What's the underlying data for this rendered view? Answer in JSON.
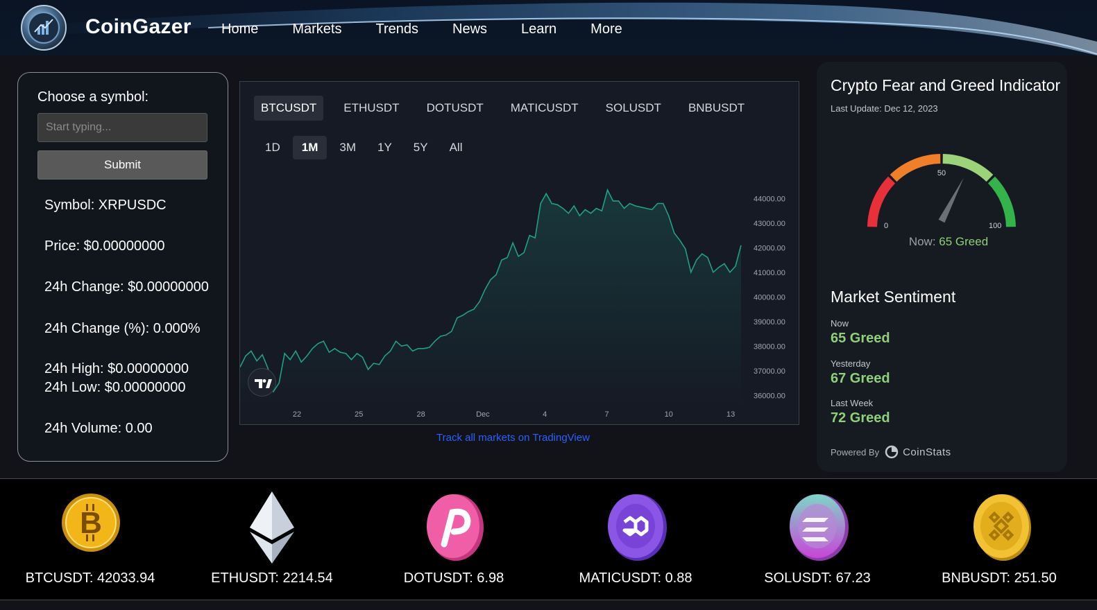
{
  "header": {
    "brand": "CoinGazer",
    "nav": [
      "Home",
      "Markets",
      "Trends",
      "News",
      "Learn",
      "More"
    ]
  },
  "left_panel": {
    "choose_label": "Choose a symbol:",
    "input_placeholder": "Start typing...",
    "submit_label": "Submit",
    "symbol": "Symbol: XRPUSDC",
    "price": "Price: $0.00000000",
    "change": "24h Change: $0.00000000",
    "change_pct": "24h Change (%): 0.000%",
    "high": "24h High: $0.00000000",
    "low": "24h Low: $0.00000000",
    "volume": "24h Volume: 0.00"
  },
  "chart_panel": {
    "symbol_tabs": [
      "BTCUSDT",
      "ETHUSDT",
      "DOTUSDT",
      "MATICUSDT",
      "SOLUSDT",
      "BNBUSDT"
    ],
    "active_symbol": "BTCUSDT",
    "range_tabs": [
      "1D",
      "1M",
      "3M",
      "1Y",
      "5Y",
      "All"
    ],
    "active_range": "1M",
    "track_link": "Track all markets on TradingView",
    "line_color": "#1fa187"
  },
  "chart_data": {
    "type": "area",
    "series": [
      {
        "values": [
          37150,
          37600,
          37800,
          37400,
          37650,
          37100,
          36150,
          36500,
          37700,
          37450,
          37800,
          37350,
          37600,
          37900,
          38100,
          38200,
          37750,
          37900,
          37750,
          37700,
          37450,
          37700,
          37550,
          37050,
          37300,
          37250,
          37600,
          37800,
          38200,
          38000,
          38050,
          37800,
          37900,
          37900,
          37950,
          38200,
          38400,
          38450,
          38600,
          39150,
          39250,
          39400,
          39500,
          39800,
          40300,
          40700,
          40900,
          41500,
          41600,
          42200,
          41650,
          41800,
          42500,
          42400,
          43800,
          44200,
          43800,
          43750,
          43600,
          43400,
          43700,
          43300,
          43550,
          43400,
          43600,
          43500,
          44350,
          43900,
          43900,
          43600,
          43800,
          43700,
          43650,
          43600,
          43550,
          43800,
          43800,
          43300,
          42600,
          42300,
          41950,
          41000,
          41500,
          41750,
          41600,
          41000,
          41200,
          41350,
          41000,
          41250,
          42100
        ]
      }
    ],
    "x_ticks": [
      "22",
      "25",
      "28",
      "Dec",
      "4",
      "7",
      "10",
      "13"
    ],
    "y_ticks": [
      "44000.00",
      "43000.00",
      "42000.00",
      "41000.00",
      "40000.00",
      "39000.00",
      "38000.00",
      "37000.00",
      "36000.00"
    ],
    "ylim": [
      35500,
      44800
    ],
    "grid": false,
    "legend": "none"
  },
  "fear_greed": {
    "title": "Crypto Fear and Greed Indicator",
    "last_update": "Last Update: Dec 12, 2023",
    "gauge_min": "0",
    "gauge_mid": "50",
    "gauge_max": "100",
    "needle_value": 65,
    "now_prefix": "Now: ",
    "now_value": "65 Greed",
    "colors": [
      "#e8303a",
      "#f07f2a",
      "#9bd27a",
      "#34b34a"
    ]
  },
  "market_sentiment": {
    "title": "Market Sentiment",
    "items": [
      {
        "label": "Now",
        "value": "65 Greed"
      },
      {
        "label": "Yesterday",
        "value": "67 Greed"
      },
      {
        "label": "Last Week",
        "value": "72 Greed"
      }
    ],
    "powered_by": "Powered By",
    "provider": "CoinStats"
  },
  "ticker": [
    {
      "label": "BTCUSDT: 42033.94",
      "icon": "bitcoin-icon"
    },
    {
      "label": "ETHUSDT: 2214.54",
      "icon": "ethereum-icon"
    },
    {
      "label": "DOTUSDT: 6.98",
      "icon": "polkadot-icon"
    },
    {
      "label": "MATICUSDT: 0.88",
      "icon": "polygon-icon"
    },
    {
      "label": "SOLUSDT: 67.23",
      "icon": "solana-icon"
    },
    {
      "label": "BNBUSDT: 251.50",
      "icon": "bnb-icon"
    }
  ]
}
